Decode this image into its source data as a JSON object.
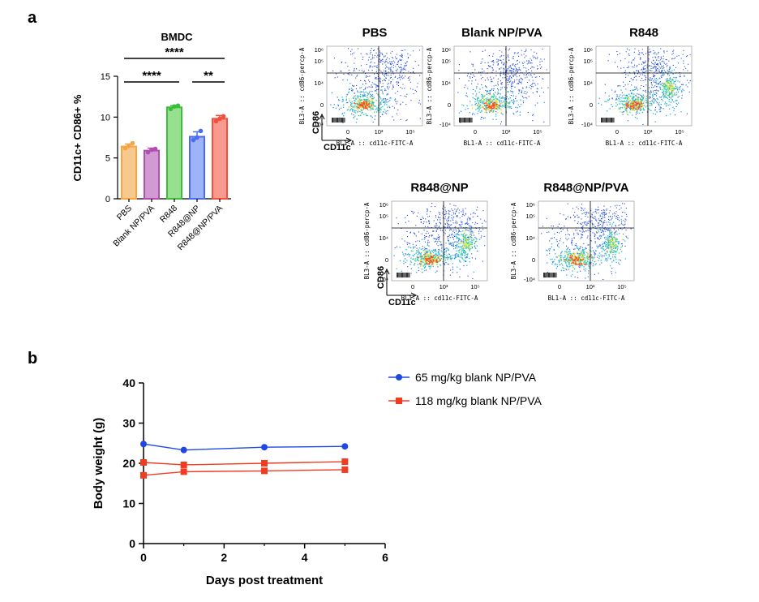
{
  "panels": {
    "a": "a",
    "b": "b"
  },
  "chart_data": [
    {
      "type": "bar",
      "title": "BMDC",
      "ylabel": "CD11c+ CD86+ %",
      "categories": [
        "PBS",
        "Blank NP/PVA",
        "R848",
        "R848@NP",
        "R848@NP/PVA"
      ],
      "values": [
        6.4,
        5.9,
        11.2,
        7.6,
        9.8
      ],
      "errors": [
        0.3,
        0.3,
        0.2,
        0.6,
        0.4
      ],
      "points": [
        [
          6.2,
          6.5,
          6.8
        ],
        [
          5.7,
          6.0,
          6.1
        ],
        [
          11.0,
          11.3,
          11.4
        ],
        [
          7.2,
          7.5,
          8.3
        ],
        [
          9.5,
          9.8,
          10.1
        ]
      ],
      "colors": [
        "#F5A541",
        "#B04FB0",
        "#3BBF3B",
        "#4A6CF0",
        "#F2503F"
      ],
      "fill_colors": [
        "#F8C98E",
        "#D29AD2",
        "#96E08F",
        "#9FB3F8",
        "#F89A90"
      ],
      "ylim": [
        0,
        15
      ],
      "yticks": [
        "0",
        "5",
        "10",
        "15"
      ],
      "significance": [
        {
          "from": 0,
          "to": 4,
          "label": "****"
        },
        {
          "from": 0,
          "to": 2,
          "label": "****"
        },
        {
          "from": 3,
          "to": 4,
          "label": "**"
        }
      ]
    },
    {
      "type": "scatter",
      "subtype": "flow-cytometry",
      "panels": [
        {
          "title": "PBS",
          "high_cluster": false
        },
        {
          "title": "Blank NP/PVA",
          "high_cluster": false
        },
        {
          "title": "R848",
          "high_cluster": true
        },
        {
          "title": "R848@NP",
          "high_cluster": true
        },
        {
          "title": "R848@NP/PVA",
          "high_cluster": true
        }
      ],
      "xlabel": "BL1-A :: cd11c-FITC-A",
      "ylabel": "BL3-A :: cd86-percp-A",
      "xticks": [
        "0",
        "10³",
        "10⁵"
      ],
      "yticks": [
        "10⁶",
        "10⁵",
        "10⁴",
        "0",
        "-10⁴"
      ],
      "axis_markers": {
        "y": "CD86",
        "x": "CD11c"
      }
    },
    {
      "type": "line",
      "xlabel": "Days post treatment",
      "ylabel": "Body weight (g)",
      "xlim": [
        0,
        6
      ],
      "ylim": [
        0,
        40
      ],
      "xticks": [
        "0",
        "2",
        "4",
        "6"
      ],
      "yticks": [
        "0",
        "10",
        "20",
        "30",
        "40"
      ],
      "legend_position": "top-right",
      "series": [
        {
          "name": "65 mg/kg blank NP/PVA",
          "color": "#1F47E6",
          "marker": "circle",
          "x": [
            0,
            1,
            3,
            5
          ],
          "y": [
            24.8,
            23.3,
            24.0,
            24.2
          ]
        },
        {
          "name": "118 mg/kg blank NP/PVA",
          "color": "#F23C21",
          "marker": "square",
          "x": [
            0,
            1,
            3,
            5
          ],
          "y": [
            20.2,
            19.6,
            20.0,
            20.4
          ]
        },
        {
          "name": "118 mg/kg blank NP/PVA",
          "color": "#F23C21",
          "marker": "square",
          "x": [
            0,
            1,
            3,
            5
          ],
          "y": [
            17.0,
            17.9,
            18.1,
            18.4
          ]
        }
      ]
    }
  ]
}
